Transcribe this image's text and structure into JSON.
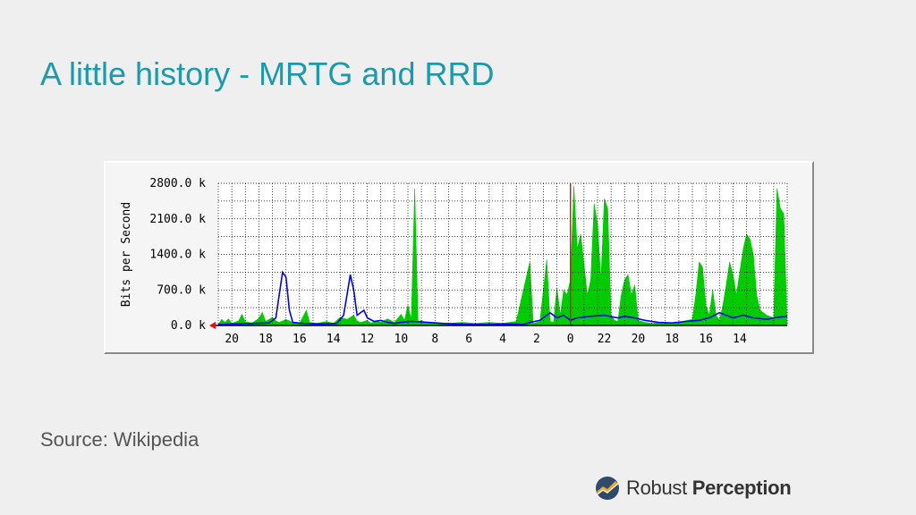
{
  "slide": {
    "title": "A little history - MRTG and RRD",
    "source": "Source: Wikipedia",
    "brand_regular": "Robust",
    "brand_bold": "Perception"
  },
  "colors": {
    "title": "#1a9aab",
    "inbound": "#00cc00",
    "outbound": "#0000ff",
    "marker": "#ff0000",
    "grid": "#000000"
  },
  "chart_data": {
    "type": "area",
    "title": "",
    "ylabel": "Bits per Second",
    "xlabel": "",
    "ylim": [
      0,
      2800
    ],
    "yticks": [
      0,
      700,
      1400,
      2100,
      2800
    ],
    "ytick_labels": [
      "0.0 k",
      "700.0 k",
      "1400.0 k",
      "2100.0 k",
      "2800.0 k"
    ],
    "xlim": [
      0,
      168
    ],
    "xticks": [
      {
        "x": 4,
        "label": "20"
      },
      {
        "x": 14,
        "label": "18"
      },
      {
        "x": 24,
        "label": "16"
      },
      {
        "x": 34,
        "label": "14"
      },
      {
        "x": 44,
        "label": "12"
      },
      {
        "x": 54,
        "label": "10"
      },
      {
        "x": 64,
        "label": "8"
      },
      {
        "x": 74,
        "label": "6"
      },
      {
        "x": 84,
        "label": "4"
      },
      {
        "x": 94,
        "label": "2"
      },
      {
        "x": 104,
        "label": "0"
      },
      {
        "x": 114,
        "label": "22"
      },
      {
        "x": 124,
        "label": "20"
      },
      {
        "x": 134,
        "label": "18"
      },
      {
        "x": 144,
        "label": "16"
      },
      {
        "x": 154,
        "label": "14"
      }
    ],
    "marker_x": 104,
    "grid": true,
    "series": [
      {
        "color": "#00cc00",
        "fill": true,
        "points": [
          [
            0,
            20
          ],
          [
            1,
            120
          ],
          [
            2,
            60
          ],
          [
            3,
            130
          ],
          [
            4,
            40
          ],
          [
            6,
            90
          ],
          [
            7,
            220
          ],
          [
            8,
            70
          ],
          [
            10,
            50
          ],
          [
            12,
            140
          ],
          [
            13,
            260
          ],
          [
            14,
            80
          ],
          [
            16,
            160
          ],
          [
            17,
            90
          ],
          [
            18,
            60
          ],
          [
            20,
            120
          ],
          [
            22,
            60
          ],
          [
            24,
            40
          ],
          [
            26,
            300
          ],
          [
            27,
            60
          ],
          [
            29,
            40
          ],
          [
            32,
            80
          ],
          [
            34,
            40
          ],
          [
            36,
            160
          ],
          [
            38,
            120
          ],
          [
            40,
            200
          ],
          [
            41,
            90
          ],
          [
            42,
            60
          ],
          [
            44,
            100
          ],
          [
            45,
            50
          ],
          [
            47,
            80
          ],
          [
            48,
            60
          ],
          [
            50,
            130
          ],
          [
            52,
            60
          ],
          [
            54,
            220
          ],
          [
            55,
            100
          ],
          [
            56,
            400
          ],
          [
            57,
            120
          ],
          [
            58,
            2700
          ],
          [
            59,
            60
          ],
          [
            60,
            100
          ],
          [
            61,
            50
          ],
          [
            64,
            60
          ],
          [
            68,
            40
          ],
          [
            72,
            60
          ],
          [
            76,
            40
          ],
          [
            80,
            60
          ],
          [
            84,
            40
          ],
          [
            88,
            80
          ],
          [
            92,
            1250
          ],
          [
            93,
            40
          ],
          [
            95,
            80
          ],
          [
            97,
            1300
          ],
          [
            98,
            80
          ],
          [
            99,
            60
          ],
          [
            100,
            750
          ],
          [
            101,
            200
          ],
          [
            102,
            700
          ],
          [
            103,
            600
          ],
          [
            104,
            900
          ],
          [
            105,
            2750
          ],
          [
            106,
            1500
          ],
          [
            107,
            1800
          ],
          [
            108,
            1200
          ],
          [
            109,
            600
          ],
          [
            110,
            900
          ],
          [
            111,
            2400
          ],
          [
            112,
            2000
          ],
          [
            113,
            900
          ],
          [
            114,
            2500
          ],
          [
            115,
            2300
          ],
          [
            116,
            200
          ],
          [
            117,
            100
          ],
          [
            118,
            80
          ],
          [
            119,
            600
          ],
          [
            120,
            900
          ],
          [
            121,
            1000
          ],
          [
            122,
            600
          ],
          [
            123,
            800
          ],
          [
            124,
            100
          ],
          [
            126,
            60
          ],
          [
            128,
            40
          ],
          [
            131,
            60
          ],
          [
            134,
            40
          ],
          [
            137,
            80
          ],
          [
            140,
            120
          ],
          [
            141,
            600
          ],
          [
            142,
            1250
          ],
          [
            143,
            1150
          ],
          [
            144,
            400
          ],
          [
            145,
            200
          ],
          [
            146,
            700
          ],
          [
            147,
            200
          ],
          [
            148,
            100
          ],
          [
            149,
            400
          ],
          [
            150,
            800
          ],
          [
            151,
            1250
          ],
          [
            152,
            1000
          ],
          [
            153,
            600
          ],
          [
            155,
            1500
          ],
          [
            156,
            1800
          ],
          [
            157,
            1700
          ],
          [
            158,
            1400
          ],
          [
            159,
            600
          ],
          [
            160,
            300
          ],
          [
            162,
            200
          ],
          [
            164,
            150
          ],
          [
            165,
            2700
          ],
          [
            166,
            2300
          ],
          [
            167,
            2200
          ],
          [
            168,
            0
          ]
        ]
      },
      {
        "color": "#0000ff",
        "fill": false,
        "points": [
          [
            0,
            20
          ],
          [
            5,
            30
          ],
          [
            10,
            40
          ],
          [
            15,
            50
          ],
          [
            17,
            150
          ],
          [
            18,
            600
          ],
          [
            19,
            1050
          ],
          [
            20,
            950
          ],
          [
            21,
            300
          ],
          [
            22,
            60
          ],
          [
            25,
            40
          ],
          [
            30,
            30
          ],
          [
            35,
            40
          ],
          [
            37,
            200
          ],
          [
            38,
            600
          ],
          [
            39,
            1000
          ],
          [
            40,
            700
          ],
          [
            41,
            200
          ],
          [
            43,
            300
          ],
          [
            44,
            150
          ],
          [
            46,
            80
          ],
          [
            48,
            100
          ],
          [
            50,
            60
          ],
          [
            52,
            40
          ],
          [
            54,
            60
          ],
          [
            57,
            80
          ],
          [
            60,
            70
          ],
          [
            62,
            60
          ],
          [
            66,
            40
          ],
          [
            70,
            30
          ],
          [
            75,
            20
          ],
          [
            80,
            20
          ],
          [
            85,
            30
          ],
          [
            90,
            20
          ],
          [
            92,
            60
          ],
          [
            95,
            100
          ],
          [
            98,
            250
          ],
          [
            100,
            150
          ],
          [
            102,
            200
          ],
          [
            104,
            100
          ],
          [
            106,
            150
          ],
          [
            110,
            180
          ],
          [
            114,
            200
          ],
          [
            118,
            150
          ],
          [
            120,
            180
          ],
          [
            122,
            160
          ],
          [
            126,
            100
          ],
          [
            130,
            60
          ],
          [
            134,
            50
          ],
          [
            138,
            80
          ],
          [
            142,
            100
          ],
          [
            145,
            150
          ],
          [
            148,
            250
          ],
          [
            150,
            200
          ],
          [
            152,
            150
          ],
          [
            155,
            200
          ],
          [
            158,
            150
          ],
          [
            162,
            120
          ],
          [
            165,
            160
          ],
          [
            168,
            180
          ]
        ]
      }
    ]
  }
}
